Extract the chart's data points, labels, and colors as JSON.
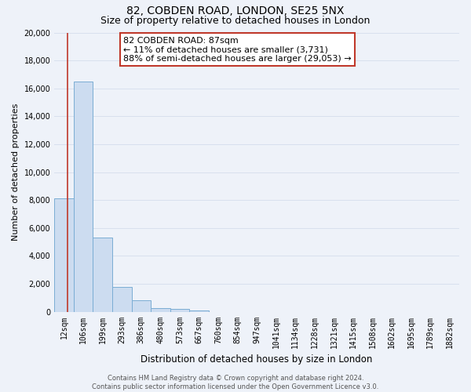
{
  "title": "82, COBDEN ROAD, LONDON, SE25 5NX",
  "subtitle": "Size of property relative to detached houses in London",
  "xlabel": "Distribution of detached houses by size in London",
  "ylabel": "Number of detached properties",
  "categories": [
    "12sqm",
    "106sqm",
    "199sqm",
    "293sqm",
    "386sqm",
    "480sqm",
    "573sqm",
    "667sqm",
    "760sqm",
    "854sqm",
    "947sqm",
    "1041sqm",
    "1134sqm",
    "1228sqm",
    "1321sqm",
    "1415sqm",
    "1508sqm",
    "1602sqm",
    "1695sqm",
    "1789sqm",
    "1882sqm"
  ],
  "values": [
    8100,
    16500,
    5300,
    1800,
    800,
    280,
    180,
    110,
    0,
    0,
    0,
    0,
    0,
    0,
    0,
    0,
    0,
    0,
    0,
    0,
    0
  ],
  "bar_color_fill": "#ccdcf0",
  "bar_color_edge": "#7aadd4",
  "highlight_color": "#c0392b",
  "annotation_title": "82 COBDEN ROAD: 87sqm",
  "annotation_line1": "← 11% of detached houses are smaller (3,731)",
  "annotation_line2": "88% of semi-detached houses are larger (29,053) →",
  "annotation_box_color": "#ffffff",
  "annotation_box_edgecolor": "#c0392b",
  "ylim": [
    0,
    20000
  ],
  "yticks": [
    0,
    2000,
    4000,
    6000,
    8000,
    10000,
    12000,
    14000,
    16000,
    18000,
    20000
  ],
  "footer_line1": "Contains HM Land Registry data © Crown copyright and database right 2024.",
  "footer_line2": "Contains public sector information licensed under the Open Government Licence v3.0.",
  "bg_color": "#eef2f9",
  "grid_color": "#d8e0ee",
  "title_fontsize": 10,
  "subtitle_fontsize": 9,
  "tick_fontsize": 7,
  "ylabel_fontsize": 8,
  "xlabel_fontsize": 8.5,
  "red_line_x": 0.18
}
